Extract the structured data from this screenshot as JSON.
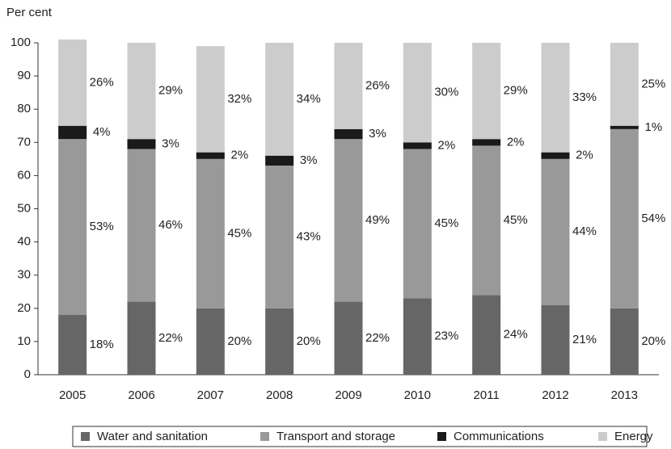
{
  "chart_data": {
    "type": "stacked_bar",
    "y_label": "Per cent",
    "categories": [
      "2005",
      "2006",
      "2007",
      "2008",
      "2009",
      "2010",
      "2011",
      "2012",
      "2013"
    ],
    "series": [
      {
        "name": "Water and sanitation",
        "color": "#666666",
        "values": [
          18,
          22,
          20,
          20,
          22,
          23,
          24,
          21,
          20
        ],
        "value_labels": [
          "18%",
          "22%",
          "20%",
          "20%",
          "22%",
          "23%",
          "24%",
          "21%",
          "20%"
        ]
      },
      {
        "name": "Transport and storage",
        "color": "#999999",
        "values": [
          53,
          46,
          45,
          43,
          49,
          45,
          45,
          44,
          54
        ],
        "value_labels": [
          "53%",
          "46%",
          "45%",
          "43%",
          "49%",
          "45%",
          "45%",
          "44%",
          "54%"
        ]
      },
      {
        "name": "Communications",
        "color": "#1a1a1a",
        "values": [
          4,
          3,
          2,
          3,
          3,
          2,
          2,
          2,
          1
        ],
        "value_labels": [
          "4%",
          "3%",
          "2%",
          "3%",
          "3%",
          "2%",
          "2%",
          "2%",
          "1%"
        ]
      },
      {
        "name": "Energy",
        "color": "#cccccc",
        "values": [
          26,
          29,
          32,
          34,
          26,
          30,
          29,
          33,
          25
        ],
        "value_labels": [
          "26%",
          "29%",
          "32%",
          "34%",
          "26%",
          "30%",
          "29%",
          "33%",
          "25%"
        ]
      }
    ],
    "ylim": [
      0,
      100
    ],
    "yticks": [
      0,
      10,
      20,
      30,
      40,
      50,
      60,
      70,
      80,
      90,
      100
    ],
    "legend": "bottom"
  }
}
